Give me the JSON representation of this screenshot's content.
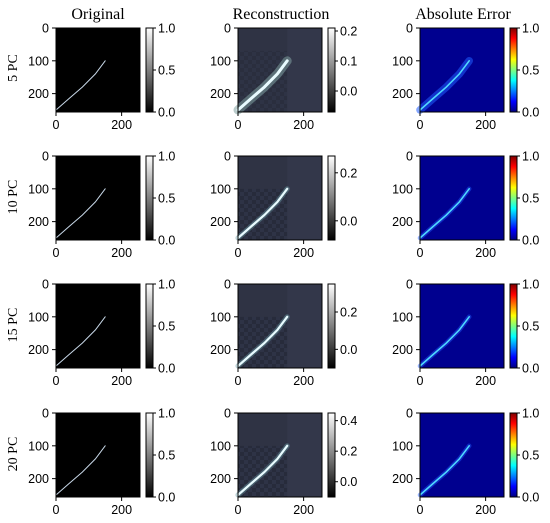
{
  "figure": {
    "column_titles": [
      "Original",
      "Reconstruction",
      "Absolute Error"
    ],
    "row_labels": [
      "5 PC",
      "10 PC",
      "15 PC",
      "20 PC"
    ]
  },
  "chart_data": {
    "type": "heatmap",
    "image_axes": {
      "x_ticks": [
        0,
        200
      ],
      "y_ticks": [
        0,
        100,
        200
      ],
      "xlim": [
        0,
        256
      ],
      "ylim": [
        256,
        0
      ]
    },
    "curve": {
      "description": "bright thin curve from lower-left to upper-right",
      "points": [
        [
          0,
          250
        ],
        [
          40,
          215
        ],
        [
          80,
          180
        ],
        [
          120,
          140
        ],
        [
          150,
          100
        ]
      ]
    },
    "colormaps": {
      "Original": "gray (black to white)",
      "Reconstruction": "gray (black to white)",
      "Absolute Error": "jet (blue to red)"
    },
    "panels": [
      {
        "row": "5 PC",
        "col": "Original",
        "colorbar_ticks": [
          "0.0",
          "0.5",
          "1.0"
        ],
        "vmin": 0.0,
        "vmax": 1.0
      },
      {
        "row": "5 PC",
        "col": "Reconstruction",
        "colorbar_ticks": [
          "0.0",
          "0.1",
          "0.2"
        ],
        "vmin": -0.07,
        "vmax": 0.21
      },
      {
        "row": "5 PC",
        "col": "Absolute Error",
        "colorbar_ticks": [
          "0.0",
          "0.5",
          "1.0"
        ],
        "vmin": 0.0,
        "vmax": 1.0
      },
      {
        "row": "10 PC",
        "col": "Original",
        "colorbar_ticks": [
          "0.0",
          "0.5",
          "1.0"
        ],
        "vmin": 0.0,
        "vmax": 1.0
      },
      {
        "row": "10 PC",
        "col": "Reconstruction",
        "colorbar_ticks": [
          "0.0",
          "0.2"
        ],
        "vmin": -0.08,
        "vmax": 0.27
      },
      {
        "row": "10 PC",
        "col": "Absolute Error",
        "colorbar_ticks": [
          "0.0",
          "0.5",
          "1.0"
        ],
        "vmin": 0.0,
        "vmax": 1.0
      },
      {
        "row": "15 PC",
        "col": "Original",
        "colorbar_ticks": [
          "0.0",
          "0.5",
          "1.0"
        ],
        "vmin": 0.0,
        "vmax": 1.0
      },
      {
        "row": "15 PC",
        "col": "Reconstruction",
        "colorbar_ticks": [
          "0.0",
          "0.2"
        ],
        "vmin": -0.1,
        "vmax": 0.35
      },
      {
        "row": "15 PC",
        "col": "Absolute Error",
        "colorbar_ticks": [
          "0.0",
          "0.5",
          "1.0"
        ],
        "vmin": 0.0,
        "vmax": 1.0
      },
      {
        "row": "20 PC",
        "col": "Original",
        "colorbar_ticks": [
          "0.0",
          "0.5",
          "1.0"
        ],
        "vmin": 0.0,
        "vmax": 1.0
      },
      {
        "row": "20 PC",
        "col": "Reconstruction",
        "colorbar_ticks": [
          "0.0",
          "0.2",
          "0.4"
        ],
        "vmin": -0.1,
        "vmax": 0.45
      },
      {
        "row": "20 PC",
        "col": "Absolute Error",
        "colorbar_ticks": [
          "0.0",
          "0.5",
          "1.0"
        ],
        "vmin": 0.0,
        "vmax": 1.0
      }
    ]
  }
}
